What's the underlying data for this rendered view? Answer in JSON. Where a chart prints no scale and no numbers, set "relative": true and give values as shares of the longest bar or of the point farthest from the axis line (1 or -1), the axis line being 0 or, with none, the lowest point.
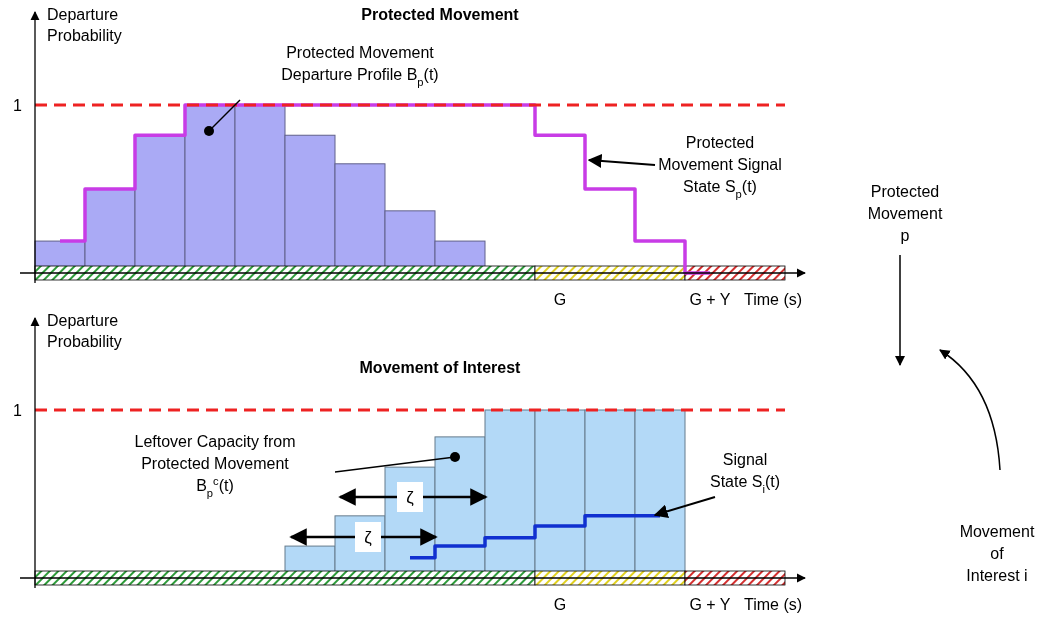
{
  "chart_data": [
    {
      "type": "bar",
      "title": "Protected Movement",
      "xlabel": "Time (s)",
      "ylabel": "Departure Probability",
      "relative": true,
      "tick_labels": "x",
      "marker": "none",
      "line_style": "solid",
      "categories": [
        null,
        null,
        null,
        null,
        null,
        null,
        null,
        null,
        null,
        null,
        "G",
        null,
        null,
        "G + Y",
        null
      ],
      "series": [
        {
          "color": "#aaaaf5",
          "values": [
            0.19,
            0.5,
            0.82,
            1,
            1,
            0.82,
            0.65,
            0.37,
            0.19,
            null,
            null,
            null,
            null,
            null,
            null
          ]
        },
        {
          "type": "step",
          "color": "#c83ce6",
          "values": [
            0.19,
            0.5,
            0.82,
            1,
            1,
            1,
            1,
            1,
            1,
            1,
            0.82,
            0.5,
            0.19,
            0,
            null
          ]
        }
      ],
      "ref_lines": [
        {
          "axis": "y",
          "value": 1,
          "label": "1",
          "color": "#ee2222",
          "line_style": "dashed"
        }
      ],
      "annotations": [
        "Protected Movement Departure Profile B$_{p}$(t)",
        "Protected Movement Signal State S$_{p}$(t)",
        "Protected Movement p"
      ]
    },
    {
      "type": "bar",
      "title": "Movement of Interest",
      "xlabel": "Time (s)",
      "ylabel": "Departure Probability",
      "relative": true,
      "tick_labels": "x",
      "marker": "none",
      "line_style": "solid",
      "categories": [
        null,
        null,
        null,
        null,
        null,
        null,
        null,
        null,
        null,
        null,
        "G",
        null,
        null,
        "G + Y",
        null
      ],
      "series": [
        {
          "color": "#b3d9f7",
          "values": [
            null,
            null,
            null,
            null,
            null,
            0.19,
            0.37,
            0.66,
            0.84,
            1,
            1,
            1,
            1,
            null,
            null
          ]
        },
        {
          "type": "step",
          "color": "#1030d0",
          "values": [
            null,
            null,
            null,
            null,
            null,
            null,
            null,
            0.12,
            0.19,
            0.24,
            0.31,
            0.37,
            0.37,
            null,
            null
          ]
        }
      ],
      "ref_lines": [
        {
          "axis": "y",
          "value": 1,
          "label": "1",
          "color": "#ee2222",
          "line_style": "dashed"
        }
      ],
      "annotations": [
        "Leftover Capacity from Protected Movement B$_{p}$$^{c}$(t)",
        "Signal State S$_{i}$(t)",
        "ζ",
        "ζ",
        "Movement of Interest i"
      ]
    }
  ]
}
